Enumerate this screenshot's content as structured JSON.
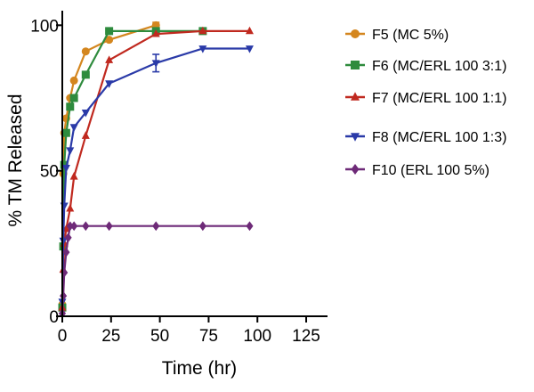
{
  "chart_data": {
    "type": "line",
    "title": "",
    "xlabel": "Time (hr)",
    "ylabel": "% TM Released",
    "xlim": [
      0,
      130
    ],
    "ylim": [
      0,
      105
    ],
    "xticks": [
      0,
      25,
      50,
      75,
      100,
      125
    ],
    "yticks": [
      0,
      50,
      100
    ],
    "xtick_labels": [
      "0",
      "25",
      "50",
      "75",
      "100",
      "125"
    ],
    "ytick_labels": [
      "0",
      "50",
      "100"
    ],
    "legend_position": "right",
    "grid": false,
    "series": [
      {
        "name": "F5 (MC 5%)",
        "color": "#d4861e",
        "marker": "circle",
        "x": [
          0,
          0.5,
          1,
          2,
          4,
          6,
          12,
          24,
          48
        ],
        "y": [
          4,
          49,
          63,
          68,
          75,
          81,
          91,
          95,
          100
        ],
        "error": [
          0,
          0,
          0,
          0,
          0,
          0,
          0,
          0,
          1
        ]
      },
      {
        "name": "F6 (MC/ERL 100 3:1)",
        "color": "#2e8b3d",
        "marker": "square",
        "x": [
          0,
          0.5,
          1,
          2,
          4,
          6,
          12,
          24,
          48,
          72
        ],
        "y": [
          3,
          24,
          52,
          63,
          72,
          75,
          83,
          98,
          98,
          98
        ],
        "error": [
          0,
          0,
          0,
          0,
          0,
          0,
          0,
          0,
          0,
          0
        ]
      },
      {
        "name": "F7 (MC/ERL 100 1:1)",
        "color": "#c0291f",
        "marker": "triangle-up",
        "x": [
          0,
          0.5,
          1,
          2,
          4,
          6,
          12,
          24,
          48,
          72,
          96
        ],
        "y": [
          3,
          16,
          25,
          30,
          37,
          48,
          62,
          88,
          97,
          98,
          98
        ],
        "error": [
          0,
          0,
          0,
          0,
          0,
          0,
          0,
          0,
          0,
          0,
          0
        ]
      },
      {
        "name": "F8 (MC/ERL 100 1:3)",
        "color": "#2a3aa8",
        "marker": "triangle-down",
        "x": [
          0,
          0.5,
          1,
          2,
          4,
          6,
          12,
          24,
          48,
          72,
          96
        ],
        "y": [
          5,
          26,
          38,
          51,
          57,
          65,
          70,
          80,
          87,
          92,
          92
        ],
        "error": [
          0,
          0,
          0,
          0,
          0,
          0,
          0,
          0,
          3,
          0,
          0
        ]
      },
      {
        "name": "F10 (ERL 100 5%)",
        "color": "#6e2a78",
        "marker": "diamond",
        "x": [
          0,
          0.5,
          1,
          2,
          3,
          4,
          6,
          12,
          24,
          48,
          72,
          96
        ],
        "y": [
          1,
          7,
          15,
          22,
          27,
          31,
          31,
          31,
          31,
          31,
          31,
          31
        ],
        "error": [
          0,
          0,
          0,
          0,
          0,
          0,
          0,
          0,
          0,
          0,
          0,
          0
        ]
      }
    ]
  }
}
